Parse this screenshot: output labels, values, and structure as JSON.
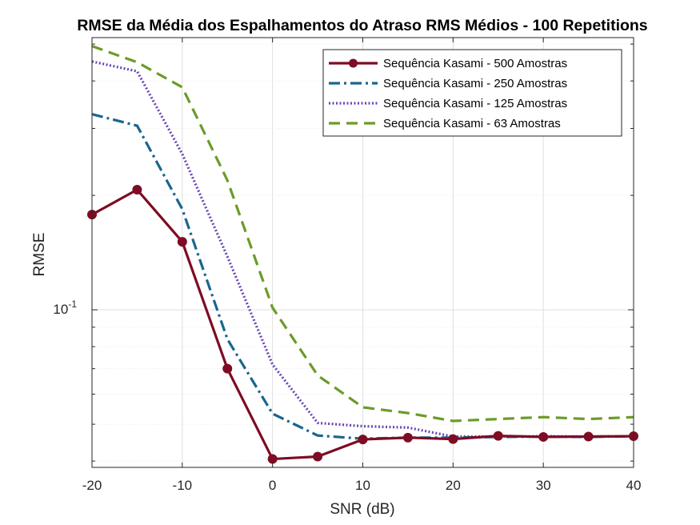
{
  "chart_data": {
    "type": "line",
    "title": "RMSE da Média dos Espalhamentos do Atraso RMS Médios - 100 Repetitions",
    "xlabel": "SNR (dB)",
    "ylabel": "RMSE",
    "xlim": [
      -20,
      40
    ],
    "ylim": [
      0.0385,
      0.52
    ],
    "yscale": "log",
    "xticks": [
      -20,
      -10,
      0,
      10,
      20,
      30,
      40
    ],
    "xtick_labels": [
      "-20",
      "-10",
      "0",
      "10",
      "20",
      "30",
      "40"
    ],
    "ytick_label": {
      "base": "10",
      "exponent": "-1",
      "value": 0.1
    },
    "grid": true,
    "legend_location": "top-right",
    "x": [
      -20,
      -15,
      -10,
      -5,
      0,
      5,
      10,
      15,
      20,
      25,
      30,
      35,
      40
    ],
    "series": [
      {
        "name": "Sequência Kasami - 500 Amostras",
        "color": "#7e0c24",
        "style": "solid-marker",
        "values": [
          0.178,
          0.207,
          0.151,
          0.07,
          0.0405,
          0.0411,
          0.0456,
          0.0461,
          0.0457,
          0.0466,
          0.0463,
          0.0464,
          0.0465
        ]
      },
      {
        "name": "Sequência Kasami - 250 Amostras",
        "color": "#19668f",
        "style": "dashdot",
        "values": [
          0.327,
          0.305,
          0.184,
          0.0837,
          0.0533,
          0.0467,
          0.0458,
          0.0461,
          0.0461,
          0.0463,
          0.0464,
          0.0463,
          0.0465
        ]
      },
      {
        "name": "Sequência Kasami - 125 Amostras",
        "color": "#6a47b3",
        "style": "dotted",
        "values": [
          0.45,
          0.424,
          0.257,
          0.138,
          0.0718,
          0.0504,
          0.0494,
          0.049,
          0.0464,
          0.0464,
          0.0465,
          0.0464,
          0.0465
        ]
      },
      {
        "name": "Sequência Kasami - 63 Amostras",
        "color": "#6b9b29",
        "style": "dashed",
        "values": [
          0.494,
          0.448,
          0.385,
          0.219,
          0.1013,
          0.0672,
          0.0554,
          0.0535,
          0.051,
          0.0516,
          0.0522,
          0.0516,
          0.0522
        ]
      }
    ]
  }
}
